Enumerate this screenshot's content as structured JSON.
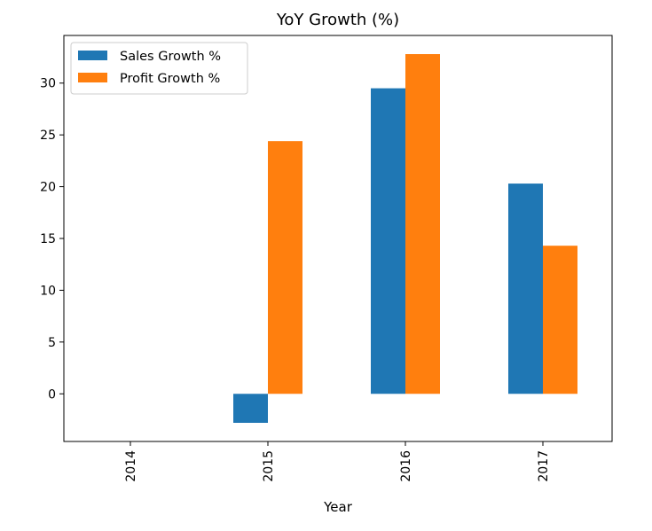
{
  "chart_data": {
    "type": "bar",
    "title": "YoY Growth (%)",
    "xlabel": "Year",
    "ylabel": "",
    "categories": [
      "2014",
      "2015",
      "2016",
      "2017"
    ],
    "series": [
      {
        "name": "Sales Growth %",
        "color": "#1f77b4",
        "values": [
          null,
          -2.8,
          29.5,
          20.3
        ]
      },
      {
        "name": "Profit Growth %",
        "color": "#ff7f0e",
        "values": [
          null,
          24.4,
          32.8,
          14.3
        ]
      }
    ],
    "ylim": [
      -4.6,
      34.6
    ],
    "yticks": [
      0,
      5,
      10,
      15,
      20,
      25,
      30
    ],
    "xtick_rotation": "vertical",
    "legend_position": "upper-left",
    "grid": false
  }
}
